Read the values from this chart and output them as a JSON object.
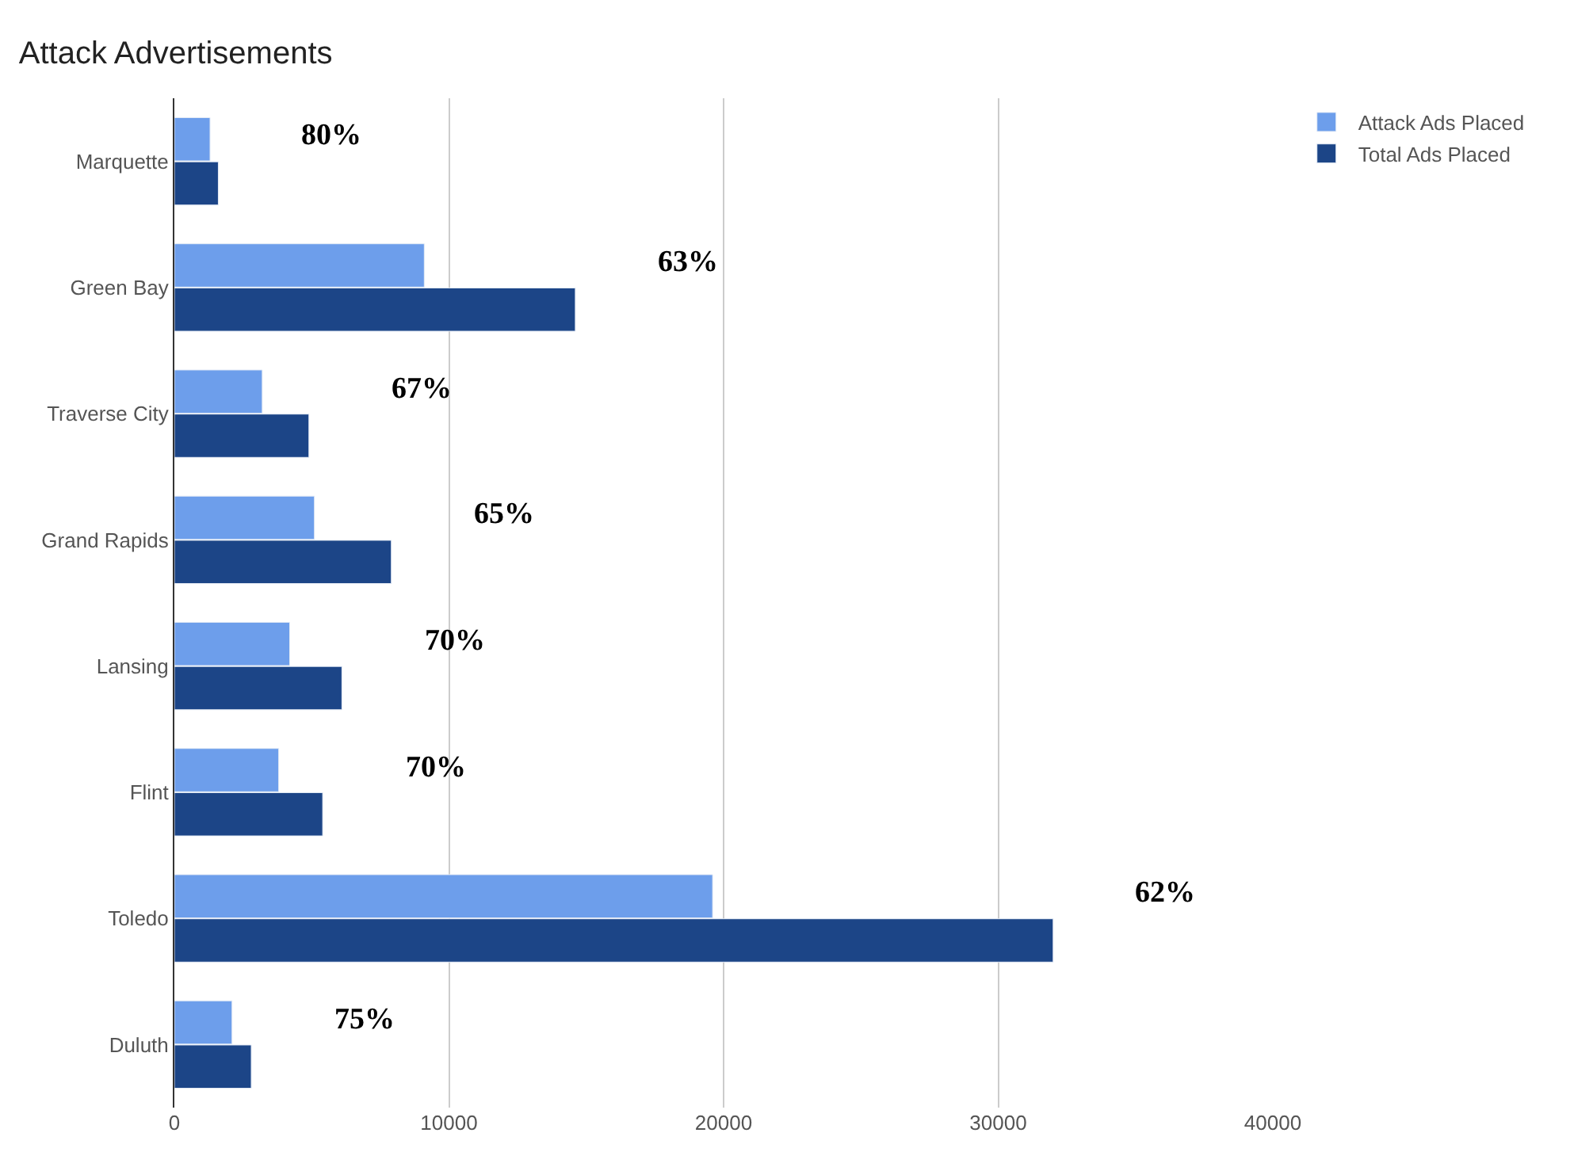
{
  "chart_data": {
    "type": "bar",
    "orientation": "horizontal",
    "title": "Attack Advertisements",
    "categories": [
      "Marquette",
      "Green Bay",
      "Traverse City",
      "Grand Rapids",
      "Lansing",
      "Flint",
      "Toledo",
      "Duluth"
    ],
    "series": [
      {
        "name": "Attack Ads Placed",
        "color": "#6d9eeb",
        "values": [
          1300,
          9100,
          3200,
          5100,
          4200,
          3800,
          19600,
          2100
        ]
      },
      {
        "name": "Total Ads Placed",
        "color": "#1c4587",
        "values": [
          1600,
          14600,
          4900,
          7900,
          6100,
          5400,
          32000,
          2800
        ]
      }
    ],
    "xlim": [
      0,
      40000
    ],
    "xticks": [
      0,
      10000,
      20000,
      30000,
      40000
    ],
    "grid": "x",
    "legend": "top right",
    "annotations": [
      "80%",
      "63%",
      "67%",
      "65%",
      "70%",
      "70%",
      "62%",
      "75%"
    ]
  }
}
